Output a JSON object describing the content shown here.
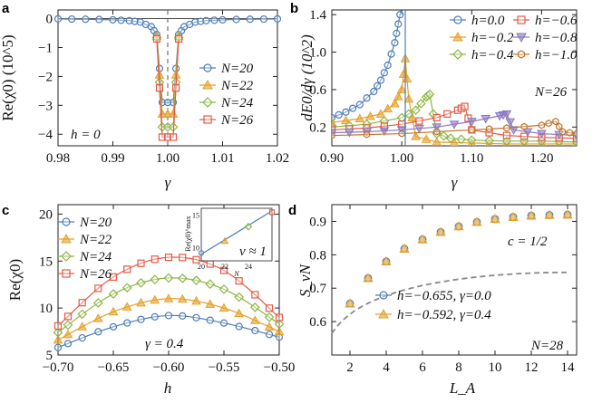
{
  "colors": {
    "blue": "#4c7db6",
    "orange": "#e5a02a",
    "green": "#8cb544",
    "red": "#e35a45",
    "purple": "#8a78c2",
    "brown": "#c0762c",
    "grey": "#888888"
  },
  "chart_data": [
    {
      "panel": "a",
      "type": "line",
      "xlabel": "γ",
      "ylabel": "Re(χ0) (10^5)",
      "xlim": [
        0.98,
        1.02
      ],
      "ylim": [
        -4.4,
        0.3
      ],
      "xticks": [
        "0.98",
        "0.99",
        "1.00",
        "1.01",
        "1.02"
      ],
      "yticks": [
        "0",
        "−1",
        "−2",
        "−3",
        "−4"
      ],
      "annotation": "h = 0",
      "series": [
        {
          "name": "N=20",
          "marker": "circle",
          "x": [
            0.98,
            0.985,
            0.99,
            0.993,
            0.995,
            0.997,
            0.998,
            0.999,
            1.001,
            1.002,
            1.003,
            1.005,
            1.007,
            1.01,
            1.015,
            1.02
          ],
          "y": [
            -0.01,
            -0.02,
            -0.04,
            -0.07,
            -0.12,
            -0.28,
            -0.55,
            -2.9,
            -2.9,
            -0.55,
            -0.28,
            -0.12,
            -0.07,
            -0.04,
            -0.02,
            -0.01
          ]
        },
        {
          "name": "N=22",
          "marker": "triangle",
          "x": [
            0.998,
            0.999,
            1.001,
            1.002
          ],
          "y": [
            -0.6,
            -3.3,
            -3.3,
            -0.6
          ]
        },
        {
          "name": "N=24",
          "marker": "diamond",
          "x": [
            0.998,
            0.999,
            1.001,
            1.002
          ],
          "y": [
            -0.65,
            -3.75,
            -3.75,
            -0.65
          ]
        },
        {
          "name": "N=26",
          "marker": "square",
          "x": [
            0.998,
            0.999,
            1.001,
            1.002
          ],
          "y": [
            -0.7,
            -4.1,
            -4.1,
            -0.7
          ]
        }
      ]
    },
    {
      "panel": "b",
      "type": "line",
      "xlabel": "γ",
      "ylabel": "dE0/dγ (10^2)",
      "xlim": [
        0.9,
        1.25
      ],
      "ylim": [
        0.0,
        1.45
      ],
      "xticks": [
        "0.90",
        "1.00",
        "1.10",
        "1.20"
      ],
      "yticks": [
        "0.2",
        "0.6",
        "1.0",
        "1.4"
      ],
      "annotation": "N=26",
      "series": [
        {
          "name": "h=0.0",
          "marker": "circle",
          "x": [
            0.9,
            0.92,
            0.94,
            0.96,
            0.97,
            0.98,
            0.99,
            0.995,
            1.0
          ],
          "y": [
            0.3,
            0.36,
            0.44,
            0.58,
            0.7,
            0.86,
            1.1,
            1.3,
            1.5
          ]
        },
        {
          "name": "h=−0.2",
          "marker": "triangle",
          "x": [
            0.9,
            0.94,
            0.97,
            0.99,
            1.0,
            1.005,
            1.01,
            1.02,
            1.05,
            1.1,
            1.15,
            1.2,
            1.25
          ],
          "y": [
            0.25,
            0.29,
            0.34,
            0.45,
            0.6,
            0.93,
            0.5,
            0.1,
            0.04,
            0.03,
            0.02,
            0.02,
            0.02
          ]
        },
        {
          "name": "h=−0.4",
          "marker": "diamond",
          "x": [
            0.9,
            0.95,
            1.0,
            1.02,
            1.035,
            1.04,
            1.05,
            1.07,
            1.1,
            1.15,
            1.2,
            1.25
          ],
          "y": [
            0.2,
            0.23,
            0.3,
            0.38,
            0.52,
            0.55,
            0.13,
            0.08,
            0.06,
            0.05,
            0.05,
            0.04
          ]
        },
        {
          "name": "h=−0.6",
          "marker": "square",
          "x": [
            0.9,
            0.95,
            1.0,
            1.05,
            1.08,
            1.09,
            1.1,
            1.15,
            1.2,
            1.25
          ],
          "y": [
            0.17,
            0.19,
            0.23,
            0.3,
            0.38,
            0.42,
            0.17,
            0.11,
            0.09,
            0.08
          ]
        },
        {
          "name": "h=−0.8",
          "marker": "triangle-down",
          "x": [
            0.9,
            0.95,
            1.0,
            1.05,
            1.1,
            1.14,
            1.15,
            1.16,
            1.2,
            1.25
          ],
          "y": [
            0.14,
            0.15,
            0.17,
            0.2,
            0.26,
            0.32,
            0.34,
            0.17,
            0.13,
            0.11
          ]
        },
        {
          "name": "h=−1.0",
          "marker": "hexagon",
          "x": [
            0.9,
            1.0,
            1.1,
            1.15,
            1.2,
            1.22,
            1.23,
            1.25
          ],
          "y": [
            0.11,
            0.13,
            0.17,
            0.19,
            0.22,
            0.26,
            0.15,
            0.13
          ]
        }
      ]
    },
    {
      "panel": "c",
      "type": "line",
      "xlabel": "h",
      "ylabel": "Re(χ0)",
      "xlim": [
        -0.7,
        -0.5
      ],
      "ylim": [
        5,
        21
      ],
      "xticks": [
        "−0.70",
        "−0.65",
        "−0.60",
        "−0.55",
        "−0.50"
      ],
      "yticks": [
        "5",
        "10",
        "15",
        "20"
      ],
      "annotation": "γ = 0.4",
      "series": [
        {
          "name": "N=20",
          "marker": "circle",
          "x": [
            -0.7,
            -0.65,
            -0.6,
            -0.55,
            -0.5
          ],
          "y": [
            5.8,
            8.0,
            9.2,
            8.4,
            6.9
          ]
        },
        {
          "name": "N=22",
          "marker": "triangle",
          "x": [
            -0.7,
            -0.65,
            -0.6,
            -0.55,
            -0.5
          ],
          "y": [
            6.6,
            9.6,
            11.0,
            10.0,
            7.5
          ]
        },
        {
          "name": "N=24",
          "marker": "diamond",
          "x": [
            -0.7,
            -0.65,
            -0.6,
            -0.55,
            -0.5
          ],
          "y": [
            7.4,
            11.5,
            13.2,
            12.0,
            8.3
          ]
        },
        {
          "name": "N=26",
          "marker": "square",
          "x": [
            -0.7,
            -0.65,
            -0.6,
            -0.55,
            -0.5
          ],
          "y": [
            8.1,
            13.3,
            15.4,
            14.0,
            9.0
          ]
        }
      ],
      "inset": {
        "xlabel": "N",
        "ylabel": "Re(χ0)^max",
        "xlim": [
          20,
          26
        ],
        "ylim": [
          8,
          16
        ],
        "xticks": [
          "20",
          "22",
          "24"
        ],
        "yticks": [
          "10",
          "15"
        ],
        "annotation": "ν ≈ 1",
        "points": {
          "x": [
            20,
            22,
            24,
            26
          ],
          "y": [
            9.2,
            11.0,
            13.2,
            15.4
          ]
        }
      }
    },
    {
      "panel": "d",
      "type": "scatter",
      "xlabel": "L_A",
      "ylabel": "S_vN",
      "xlim": [
        1,
        14.5
      ],
      "ylim": [
        0.5,
        0.95
      ],
      "xticks": [
        "2",
        "4",
        "6",
        "8",
        "10",
        "12",
        "14"
      ],
      "yticks": [
        "0.6",
        "0.7",
        "0.8",
        "0.9"
      ],
      "annotation_c": "c = 1/2",
      "annotation_n": "N=28",
      "series": [
        {
          "name": "h=−0.655, γ=0.0",
          "marker": "circle",
          "x": [
            2,
            3,
            4,
            5,
            6,
            7,
            8,
            9,
            10,
            11,
            12,
            13,
            14
          ],
          "y": [
            0.654,
            0.73,
            0.78,
            0.818,
            0.846,
            0.868,
            0.885,
            0.898,
            0.907,
            0.913,
            0.917,
            0.919,
            0.92
          ]
        },
        {
          "name": "h=−0.592, γ=0.4",
          "marker": "triangle",
          "x": [
            2,
            3,
            4,
            5,
            6,
            7,
            8,
            9,
            10,
            11,
            12,
            13,
            14
          ],
          "y": [
            0.654,
            0.73,
            0.78,
            0.818,
            0.846,
            0.868,
            0.885,
            0.898,
            0.907,
            0.913,
            0.917,
            0.919,
            0.92
          ]
        }
      ]
    }
  ],
  "panel_labels": [
    "a",
    "b",
    "c",
    "d"
  ],
  "legend_a": [
    "N=20",
    "N=22",
    "N=24",
    "N=26"
  ],
  "legend_b": [
    "h=0.0",
    "h=−0.2",
    "h=−0.4",
    "h=−0.6",
    "h=−0.8",
    "h=−1.0"
  ],
  "legend_c": [
    "N=20",
    "N=22",
    "N=24",
    "N=26"
  ],
  "legend_d": [
    "h=−0.655, γ=0.0",
    "h=−0.592, γ=0.4"
  ]
}
